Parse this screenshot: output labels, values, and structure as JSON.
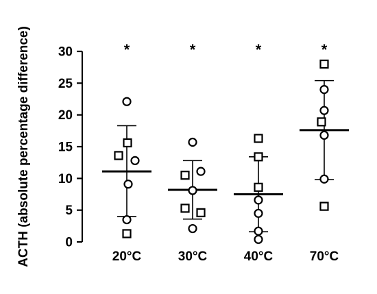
{
  "chart_data": {
    "type": "scatter",
    "title": "",
    "xlabel": "",
    "ylabel": "ACTH (absolute percentage difference)",
    "ylim": [
      0,
      30
    ],
    "yticks": [
      0,
      5,
      10,
      15,
      20,
      25,
      30
    ],
    "categories": [
      "20°C",
      "30°C",
      "40°C",
      "70°C"
    ],
    "significance_marks": [
      "*",
      "*",
      "*",
      "*"
    ],
    "summary": [
      {
        "mean": 11.1,
        "sd_upper": 18.3,
        "sd_lower": 4.0
      },
      {
        "mean": 8.2,
        "sd_upper": 12.8,
        "sd_lower": 3.6
      },
      {
        "mean": 7.5,
        "sd_upper": 13.4,
        "sd_lower": 1.6
      },
      {
        "mean": 17.6,
        "sd_upper": 25.4,
        "sd_lower": 9.8
      }
    ],
    "series": [
      {
        "marker": "circle",
        "points": [
          [
            0,
            22.1
          ],
          [
            0,
            12.8
          ],
          [
            0,
            9.1
          ],
          [
            0,
            3.5
          ],
          [
            1,
            15.7
          ],
          [
            1,
            11.1
          ],
          [
            1,
            8.1
          ],
          [
            1,
            2.1
          ],
          [
            2,
            6.6
          ],
          [
            2,
            4.5
          ],
          [
            2,
            1.7
          ],
          [
            2,
            0.4
          ],
          [
            3,
            24.0
          ],
          [
            3,
            20.7
          ],
          [
            3,
            16.8
          ],
          [
            3,
            9.9
          ]
        ]
      },
      {
        "marker": "square",
        "points": [
          [
            0,
            15.6
          ],
          [
            0,
            13.6
          ],
          [
            0,
            1.3
          ],
          [
            1,
            10.5
          ],
          [
            1,
            5.3
          ],
          [
            1,
            4.6
          ],
          [
            2,
            16.3
          ],
          [
            2,
            13.4
          ],
          [
            2,
            8.6
          ],
          [
            3,
            28.0
          ],
          [
            3,
            18.9
          ],
          [
            3,
            5.6
          ]
        ]
      }
    ],
    "colors": {
      "marker_stroke": "#000000",
      "marker_fill": "#ffffff",
      "line": "#000000"
    },
    "grid": false,
    "legend": "none"
  }
}
